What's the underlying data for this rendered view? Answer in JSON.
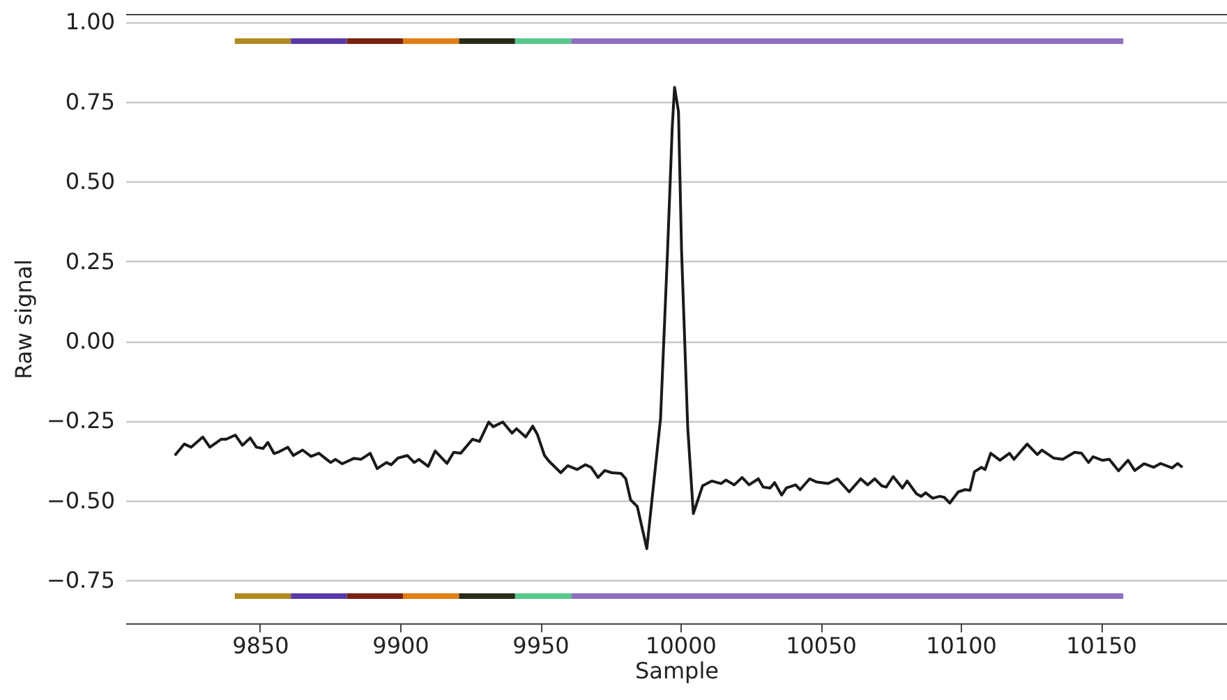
{
  "chart_data": {
    "type": "line",
    "xlabel": "Sample",
    "ylabel": "Raw signal",
    "xlim": [
      9802,
      10195
    ],
    "ylim": [
      -0.885,
      1.025
    ],
    "xticks": [
      9850,
      9900,
      9950,
      10000,
      10050,
      10100,
      10150
    ],
    "yticks": [
      {
        "value": -0.75,
        "label": "−0.75"
      },
      {
        "value": -0.5,
        "label": "−0.50"
      },
      {
        "value": -0.25,
        "label": "−0.25"
      },
      {
        "value": 0,
        "label": "0.00"
      },
      {
        "value": 0.25,
        "label": "0.25"
      },
      {
        "value": 0.5,
        "label": "0.50"
      },
      {
        "value": 0.75,
        "label": "0.75"
      },
      {
        "value": 1,
        "label": "1.00"
      }
    ],
    "grid": "y",
    "series": [
      {
        "color": "#1a1a1a",
        "x": [
          9819.6,
          9823.0,
          9825.4,
          9829.6,
          9832.1,
          9836.2,
          9837.9,
          9841.2,
          9843.7,
          9846.5,
          9848.7,
          9851.1,
          9852.8,
          9855.0,
          9856.9,
          9859.9,
          9861.9,
          9865.2,
          9868.2,
          9871.0,
          9875.2,
          9876.9,
          9879.3,
          9883.5,
          9886.0,
          9889.3,
          9891.8,
          9895.1,
          9896.8,
          9899.2,
          9902.6,
          9905.0,
          9906.7,
          9910.0,
          9912.5,
          9916.7,
          9919.1,
          9921.6,
          9925.8,
          9928.3,
          9931.6,
          9933.2,
          9936.6,
          9939.9,
          9941.5,
          9944.8,
          9947.3,
          9949.0,
          9951.5,
          9953.1,
          9957.3,
          9959.8,
          9963.1,
          9966.1,
          9968.1,
          9970.6,
          9973.0,
          9975.5,
          9978.8,
          9980.5,
          9982.2,
          9984.6,
          9988.0,
          9992.9,
          9995.4,
          9997.1,
          9997.9,
          9999.3,
          10000.4,
          10002.6,
          10004.6,
          10007.9,
          10011.2,
          10014.5,
          10016.2,
          10019.2,
          10022.0,
          10024.5,
          10027.8,
          10029.5,
          10032.0,
          10033.6,
          10036.1,
          10037.8,
          10041.1,
          10042.7,
          10046.1,
          10048.5,
          10052.7,
          10056.0,
          10060.2,
          10064.3,
          10066.8,
          10069.3,
          10071.8,
          10073.4,
          10075.9,
          10079.2,
          10080.9,
          10084.2,
          10085.9,
          10087.5,
          10090.0,
          10092.5,
          10094.1,
          10096.1,
          10099.1,
          10101.6,
          10103.3,
          10104.9,
          10107.4,
          10108.7,
          10110.7,
          10114.0,
          10117.4,
          10119.0,
          10123.7,
          10127.3,
          10129.0,
          10133.1,
          10136.4,
          10140.6,
          10143.1,
          10145.6,
          10147.2,
          10150.5,
          10153.0,
          10156.3,
          10159.7,
          10162.1,
          10165.4,
          10168.8,
          10171.3,
          10175.4,
          10177.4,
          10179.1
        ],
        "values": [
          -0.359,
          -0.323,
          -0.333,
          -0.301,
          -0.333,
          -0.308,
          -0.308,
          -0.295,
          -0.327,
          -0.304,
          -0.333,
          -0.337,
          -0.318,
          -0.353,
          -0.347,
          -0.333,
          -0.359,
          -0.342,
          -0.362,
          -0.352,
          -0.381,
          -0.371,
          -0.385,
          -0.368,
          -0.371,
          -0.352,
          -0.4,
          -0.381,
          -0.388,
          -0.367,
          -0.359,
          -0.381,
          -0.371,
          -0.393,
          -0.345,
          -0.384,
          -0.349,
          -0.352,
          -0.308,
          -0.315,
          -0.254,
          -0.269,
          -0.254,
          -0.289,
          -0.275,
          -0.301,
          -0.267,
          -0.294,
          -0.359,
          -0.377,
          -0.413,
          -0.391,
          -0.403,
          -0.388,
          -0.396,
          -0.428,
          -0.406,
          -0.413,
          -0.415,
          -0.432,
          -0.498,
          -0.519,
          -0.651,
          -0.243,
          0.282,
          0.675,
          0.795,
          0.719,
          0.282,
          -0.272,
          -0.541,
          -0.454,
          -0.439,
          -0.447,
          -0.436,
          -0.451,
          -0.428,
          -0.451,
          -0.432,
          -0.458,
          -0.461,
          -0.444,
          -0.483,
          -0.461,
          -0.451,
          -0.466,
          -0.432,
          -0.442,
          -0.447,
          -0.432,
          -0.473,
          -0.432,
          -0.451,
          -0.432,
          -0.454,
          -0.458,
          -0.425,
          -0.461,
          -0.439,
          -0.479,
          -0.487,
          -0.476,
          -0.493,
          -0.487,
          -0.49,
          -0.508,
          -0.473,
          -0.466,
          -0.468,
          -0.41,
          -0.396,
          -0.403,
          -0.352,
          -0.374,
          -0.352,
          -0.371,
          -0.323,
          -0.356,
          -0.342,
          -0.367,
          -0.371,
          -0.349,
          -0.352,
          -0.381,
          -0.363,
          -0.374,
          -0.371,
          -0.407,
          -0.374,
          -0.406,
          -0.385,
          -0.396,
          -0.384,
          -0.398,
          -0.384,
          -0.396
        ]
      },
      {
        "color": "#b08a20",
        "x": [
          9841,
          9861
        ],
        "values": [
          0.94,
          0.94
        ]
      },
      {
        "color": "#5a3aa8",
        "x": [
          9861,
          9881
        ],
        "values": [
          0.94,
          0.94
        ]
      },
      {
        "color": "#7a2210",
        "x": [
          9881,
          9901
        ],
        "values": [
          0.94,
          0.94
        ]
      },
      {
        "color": "#e07e12",
        "x": [
          9901,
          9921
        ],
        "values": [
          0.94,
          0.94
        ]
      },
      {
        "color": "#2a2a18",
        "x": [
          9921,
          9941
        ],
        "values": [
          0.94,
          0.94
        ]
      },
      {
        "color": "#55c88a",
        "x": [
          9941,
          9961
        ],
        "values": [
          0.94,
          0.94
        ]
      },
      {
        "color": "#8e70c0",
        "x": [
          9961,
          10158
        ],
        "values": [
          0.94,
          0.94
        ]
      },
      {
        "color": "#b08a20",
        "x": [
          9841,
          9861
        ],
        "values": [
          -0.8,
          -0.8
        ]
      },
      {
        "color": "#5a3aa8",
        "x": [
          9861,
          9881
        ],
        "values": [
          -0.8,
          -0.8
        ]
      },
      {
        "color": "#7a2210",
        "x": [
          9881,
          9901
        ],
        "values": [
          -0.8,
          -0.8
        ]
      },
      {
        "color": "#e07e12",
        "x": [
          9901,
          9921
        ],
        "values": [
          -0.8,
          -0.8
        ]
      },
      {
        "color": "#2a2a18",
        "x": [
          9921,
          9941
        ],
        "values": [
          -0.8,
          -0.8
        ]
      },
      {
        "color": "#55c88a",
        "x": [
          9941,
          9961
        ],
        "values": [
          -0.8,
          -0.8
        ]
      },
      {
        "color": "#8e70c0",
        "x": [
          9961,
          10158
        ],
        "values": [
          -0.8,
          -0.8
        ]
      }
    ]
  }
}
